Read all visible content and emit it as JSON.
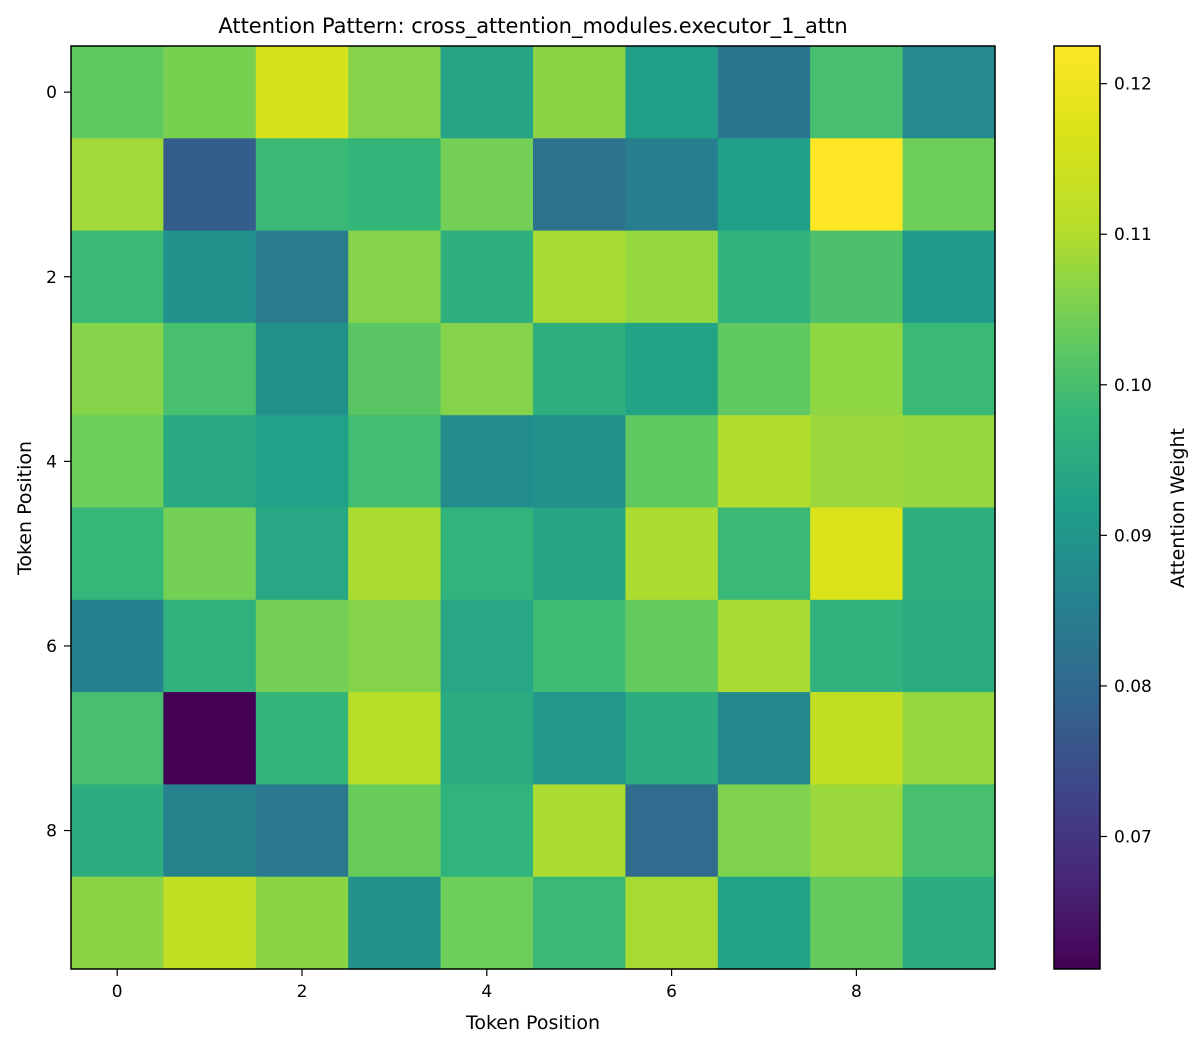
{
  "chart_data": {
    "type": "heatmap",
    "title": "Attention Pattern: cross_attention_modules.executor_1_attn",
    "xlabel": "Token Position",
    "ylabel": "Token Position",
    "colorbar_label": "Attention Weight",
    "colormap": "viridis",
    "vmin": 0.0612,
    "vmax": 0.1225,
    "x_ticks": [
      0,
      2,
      4,
      6,
      8
    ],
    "y_ticks": [
      0,
      2,
      4,
      6,
      8
    ],
    "colorbar_ticks": [
      0.07,
      0.08,
      0.09,
      0.1,
      0.11,
      0.12
    ],
    "colorbar_tick_labels": [
      "0.07",
      "0.08",
      "0.09",
      "0.10",
      "0.11",
      "0.12"
    ],
    "rows": 10,
    "cols": 10,
    "values": [
      [
        0.1025,
        0.105,
        0.116,
        0.106,
        0.0935,
        0.1065,
        0.092,
        0.083,
        0.1,
        0.0875
      ],
      [
        0.1085,
        0.0775,
        0.0985,
        0.0975,
        0.1045,
        0.082,
        0.085,
        0.092,
        0.1225,
        0.104
      ],
      [
        0.0985,
        0.089,
        0.084,
        0.106,
        0.096,
        0.109,
        0.1075,
        0.0965,
        0.1005,
        0.091
      ],
      [
        0.106,
        0.1,
        0.089,
        0.102,
        0.106,
        0.096,
        0.093,
        0.1025,
        0.107,
        0.0985
      ],
      [
        0.104,
        0.0945,
        0.0925,
        0.0995,
        0.088,
        0.089,
        0.1025,
        0.11,
        0.108,
        0.1075
      ],
      [
        0.098,
        0.1045,
        0.094,
        0.1095,
        0.097,
        0.0935,
        0.1095,
        0.0985,
        0.117,
        0.096
      ],
      [
        0.0855,
        0.0965,
        0.1045,
        0.106,
        0.094,
        0.099,
        0.103,
        0.109,
        0.0965,
        0.0955
      ],
      [
        0.1,
        0.0612,
        0.0975,
        0.111,
        0.095,
        0.0905,
        0.0955,
        0.087,
        0.1125,
        0.1075
      ],
      [
        0.0955,
        0.086,
        0.0835,
        0.1035,
        0.097,
        0.1095,
        0.0805,
        0.1055,
        0.108,
        0.1
      ],
      [
        0.1065,
        0.1125,
        0.1065,
        0.0895,
        0.104,
        0.0985,
        0.109,
        0.093,
        0.103,
        0.0955
      ]
    ]
  }
}
